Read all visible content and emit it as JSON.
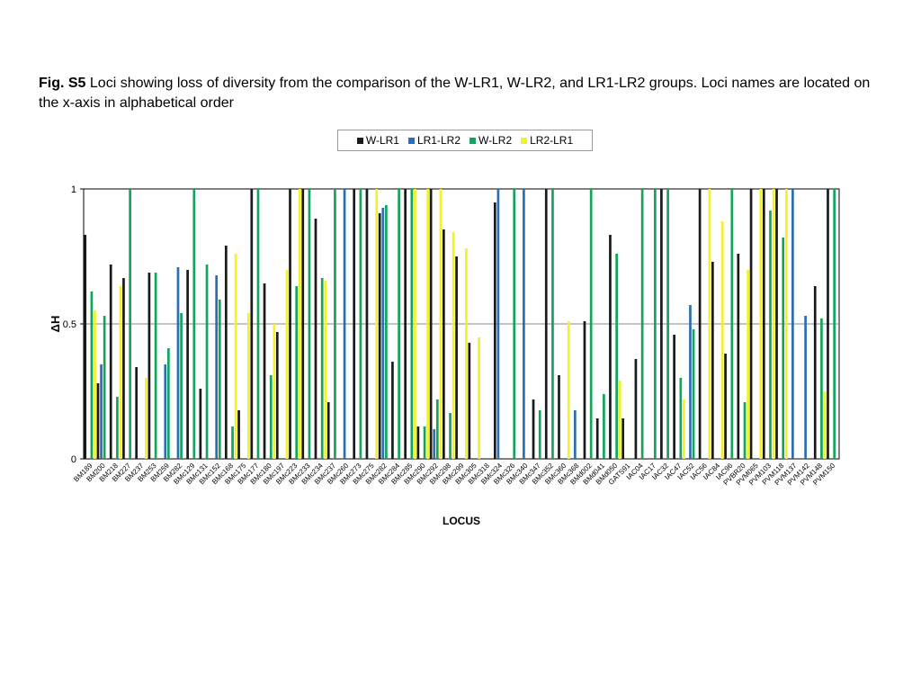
{
  "caption": {
    "label": "Fig. S5",
    "text": " Loci showing loss of diversity from the comparison of the W-LR1, W-LR2, and LR1-LR2 groups. Loci names are located on the x-axis in alphabetical order"
  },
  "colors": {
    "W-LR1": "#1a1a1a",
    "LR1-LR2": "#2b6fb0",
    "W-LR2": "#15a45b",
    "LR2-LR1": "#f2f227"
  },
  "chart_data": {
    "type": "bar",
    "title": "",
    "xlabel": "LOCUS",
    "ylabel": "ΔH",
    "ylim": [
      0,
      1
    ],
    "yticks": [
      0,
      0.5,
      1
    ],
    "grid": "horizontal at 0.5",
    "legend_position": "top-center",
    "categories": [
      "BM189",
      "BM200",
      "BM218",
      "BM227",
      "BM237",
      "BM253",
      "BM259",
      "BM282",
      "BMc129",
      "BMc131",
      "BMc152",
      "BMc168",
      "BMc175",
      "BMc177",
      "BMc180",
      "BMc197",
      "BMc223",
      "BMc233",
      "BMc234",
      "BMc237",
      "BMc260",
      "BMc273",
      "BMc275",
      "BMc282",
      "BMc284",
      "BMc285",
      "BMc290",
      "BMc292",
      "BMc298",
      "BMc299",
      "BMc305",
      "BMc318",
      "BMc324",
      "BMc326",
      "BMc340",
      "BMc347",
      "BMc352",
      "BMc360",
      "BMc368",
      "BMd002",
      "BMd041",
      "BMd050",
      "GATS91",
      "IAC04",
      "IAC17",
      "IAC32",
      "IAC47",
      "IAC52",
      "IAC56",
      "IAC84",
      "IAC96",
      "PVBR20",
      "PVM065",
      "PVM103",
      "PVM118",
      "PVM137",
      "PVM142",
      "PVM148",
      "PVM150"
    ],
    "series": [
      {
        "name": "W-LR1",
        "values": [
          0.83,
          0.28,
          0.72,
          0.67,
          0.34,
          0.69,
          0,
          0,
          0.7,
          0.26,
          0,
          0.79,
          0.18,
          1,
          0.65,
          0.47,
          1,
          1,
          0.89,
          0.21,
          0,
          1,
          1,
          0.91,
          0.36,
          1,
          0.12,
          1,
          0.85,
          0.75,
          0.43,
          0,
          0.95,
          0,
          0,
          0.22,
          1,
          0.31,
          0,
          0.51,
          0.15,
          0.83,
          0.15,
          0.37,
          0,
          1,
          0.46,
          0,
          1,
          0.73,
          0.39,
          0.76,
          1,
          1,
          1,
          0,
          0,
          0.64,
          1
        ]
      },
      {
        "name": "LR1-LR2",
        "values": [
          0,
          0.35,
          0,
          0,
          0,
          0,
          0.35,
          0.71,
          0,
          0,
          0.68,
          0,
          0,
          0,
          0,
          0,
          0,
          0,
          0,
          0,
          1,
          0,
          0,
          0.93,
          0,
          0,
          0,
          0.11,
          0,
          0,
          0,
          0,
          1,
          0,
          1,
          0,
          0,
          0,
          0.18,
          0,
          0,
          0,
          0,
          0,
          0,
          0,
          0,
          0.57,
          0,
          0,
          0,
          0,
          0,
          0,
          0,
          1,
          0.53,
          0,
          0
        ]
      },
      {
        "name": "W-LR2",
        "values": [
          0.62,
          0.53,
          0.23,
          1,
          0,
          0.69,
          0.41,
          0.54,
          1,
          0.72,
          0.59,
          0.12,
          0,
          1,
          0.31,
          0,
          0.64,
          1,
          0.67,
          1,
          0,
          1,
          0,
          0.94,
          1,
          1,
          0.12,
          0.22,
          0.17,
          0,
          0,
          0,
          0,
          1,
          0,
          0.18,
          1,
          0,
          0,
          1,
          0.24,
          0.76,
          0,
          1,
          1,
          1,
          0.3,
          0.48,
          0,
          0,
          1,
          0.21,
          0,
          0.92,
          0.82,
          0,
          0,
          0.52,
          1
        ]
      },
      {
        "name": "LR2-LR1",
        "values": [
          0.55,
          0,
          0.64,
          0,
          0.3,
          0,
          0,
          0,
          0,
          0,
          0,
          0.76,
          0.54,
          0,
          0.5,
          0.7,
          1,
          0,
          0.66,
          0,
          0,
          0,
          1,
          0,
          0,
          1,
          1,
          1,
          0.84,
          0.78,
          0.45,
          0,
          0,
          0,
          0,
          0,
          0,
          0.51,
          0,
          0,
          0,
          0.29,
          0,
          0,
          0,
          0,
          0.22,
          0,
          1,
          0.88,
          0,
          0.7,
          1,
          1,
          1,
          0,
          0,
          0.25,
          0
        ]
      }
    ]
  }
}
